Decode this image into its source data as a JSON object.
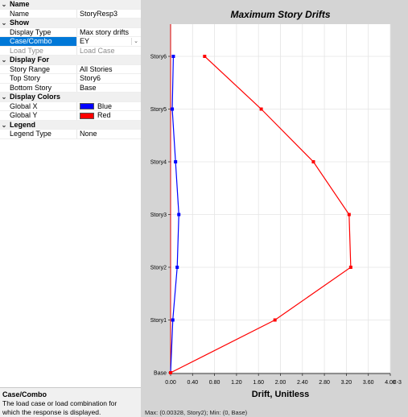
{
  "panel": {
    "sections": [
      {
        "label": "Name",
        "props": [
          {
            "name": "Name",
            "value": "StoryResp3"
          }
        ]
      },
      {
        "label": "Show",
        "props": [
          {
            "name": "Display Type",
            "value": "Max story drifts"
          },
          {
            "name": "Case/Combo",
            "value": "EY",
            "selected": true,
            "dropdown": true
          },
          {
            "name": "Load Type",
            "value": "Load Case",
            "disabled": true
          }
        ]
      },
      {
        "label": "Display For",
        "props": [
          {
            "name": "Story Range",
            "value": "All Stories"
          },
          {
            "name": "Top Story",
            "value": "Story6"
          },
          {
            "name": "Bottom Story",
            "value": "Base"
          }
        ]
      },
      {
        "label": "Display Colors",
        "props": [
          {
            "name": "Global X",
            "value": "Blue",
            "swatch": "#0000ff"
          },
          {
            "name": "Global Y",
            "value": "Red",
            "swatch": "#ff0000"
          }
        ]
      },
      {
        "label": "Legend",
        "props": [
          {
            "name": "Legend Type",
            "value": "None"
          }
        ]
      }
    ],
    "chevron_icon": "chevron-down-icon",
    "dropdown_icon": "chevron-down-icon"
  },
  "help": {
    "title": "Case/Combo",
    "text_line1": "The load case or load combination for",
    "text_line2": "which the response is displayed."
  },
  "status_text": "Max: (0.00328, Story2);  Min: (0, Base)",
  "colors": {
    "globalX": "#0000ff",
    "globalY": "#ff0000",
    "chartBg": "#ffffff",
    "frame": "#d4d4d4"
  },
  "chart_data": {
    "type": "line",
    "title": "Maximum Story Drifts",
    "xlabel": "Drift, Unitless",
    "x_multiplier_label": "E-3",
    "xlim": [
      0,
      4.0
    ],
    "x_ticks": [
      "0.00",
      "0.40",
      "0.80",
      "1.20",
      "1.60",
      "2.00",
      "2.40",
      "2.80",
      "3.20",
      "3.60",
      "4.00"
    ],
    "categories": [
      "Base",
      "Story1",
      "Story2",
      "Story3",
      "Story4",
      "Story5",
      "Story6"
    ],
    "grid": true,
    "series": [
      {
        "name": "Global X",
        "color": "#0000ff",
        "values": [
          0,
          0.04,
          0.12,
          0.15,
          0.09,
          0.03,
          0.05
        ]
      },
      {
        "name": "Global Y",
        "color": "#ff0000",
        "values": [
          0,
          1.9,
          3.28,
          3.25,
          2.6,
          1.65,
          0.62
        ]
      }
    ]
  }
}
